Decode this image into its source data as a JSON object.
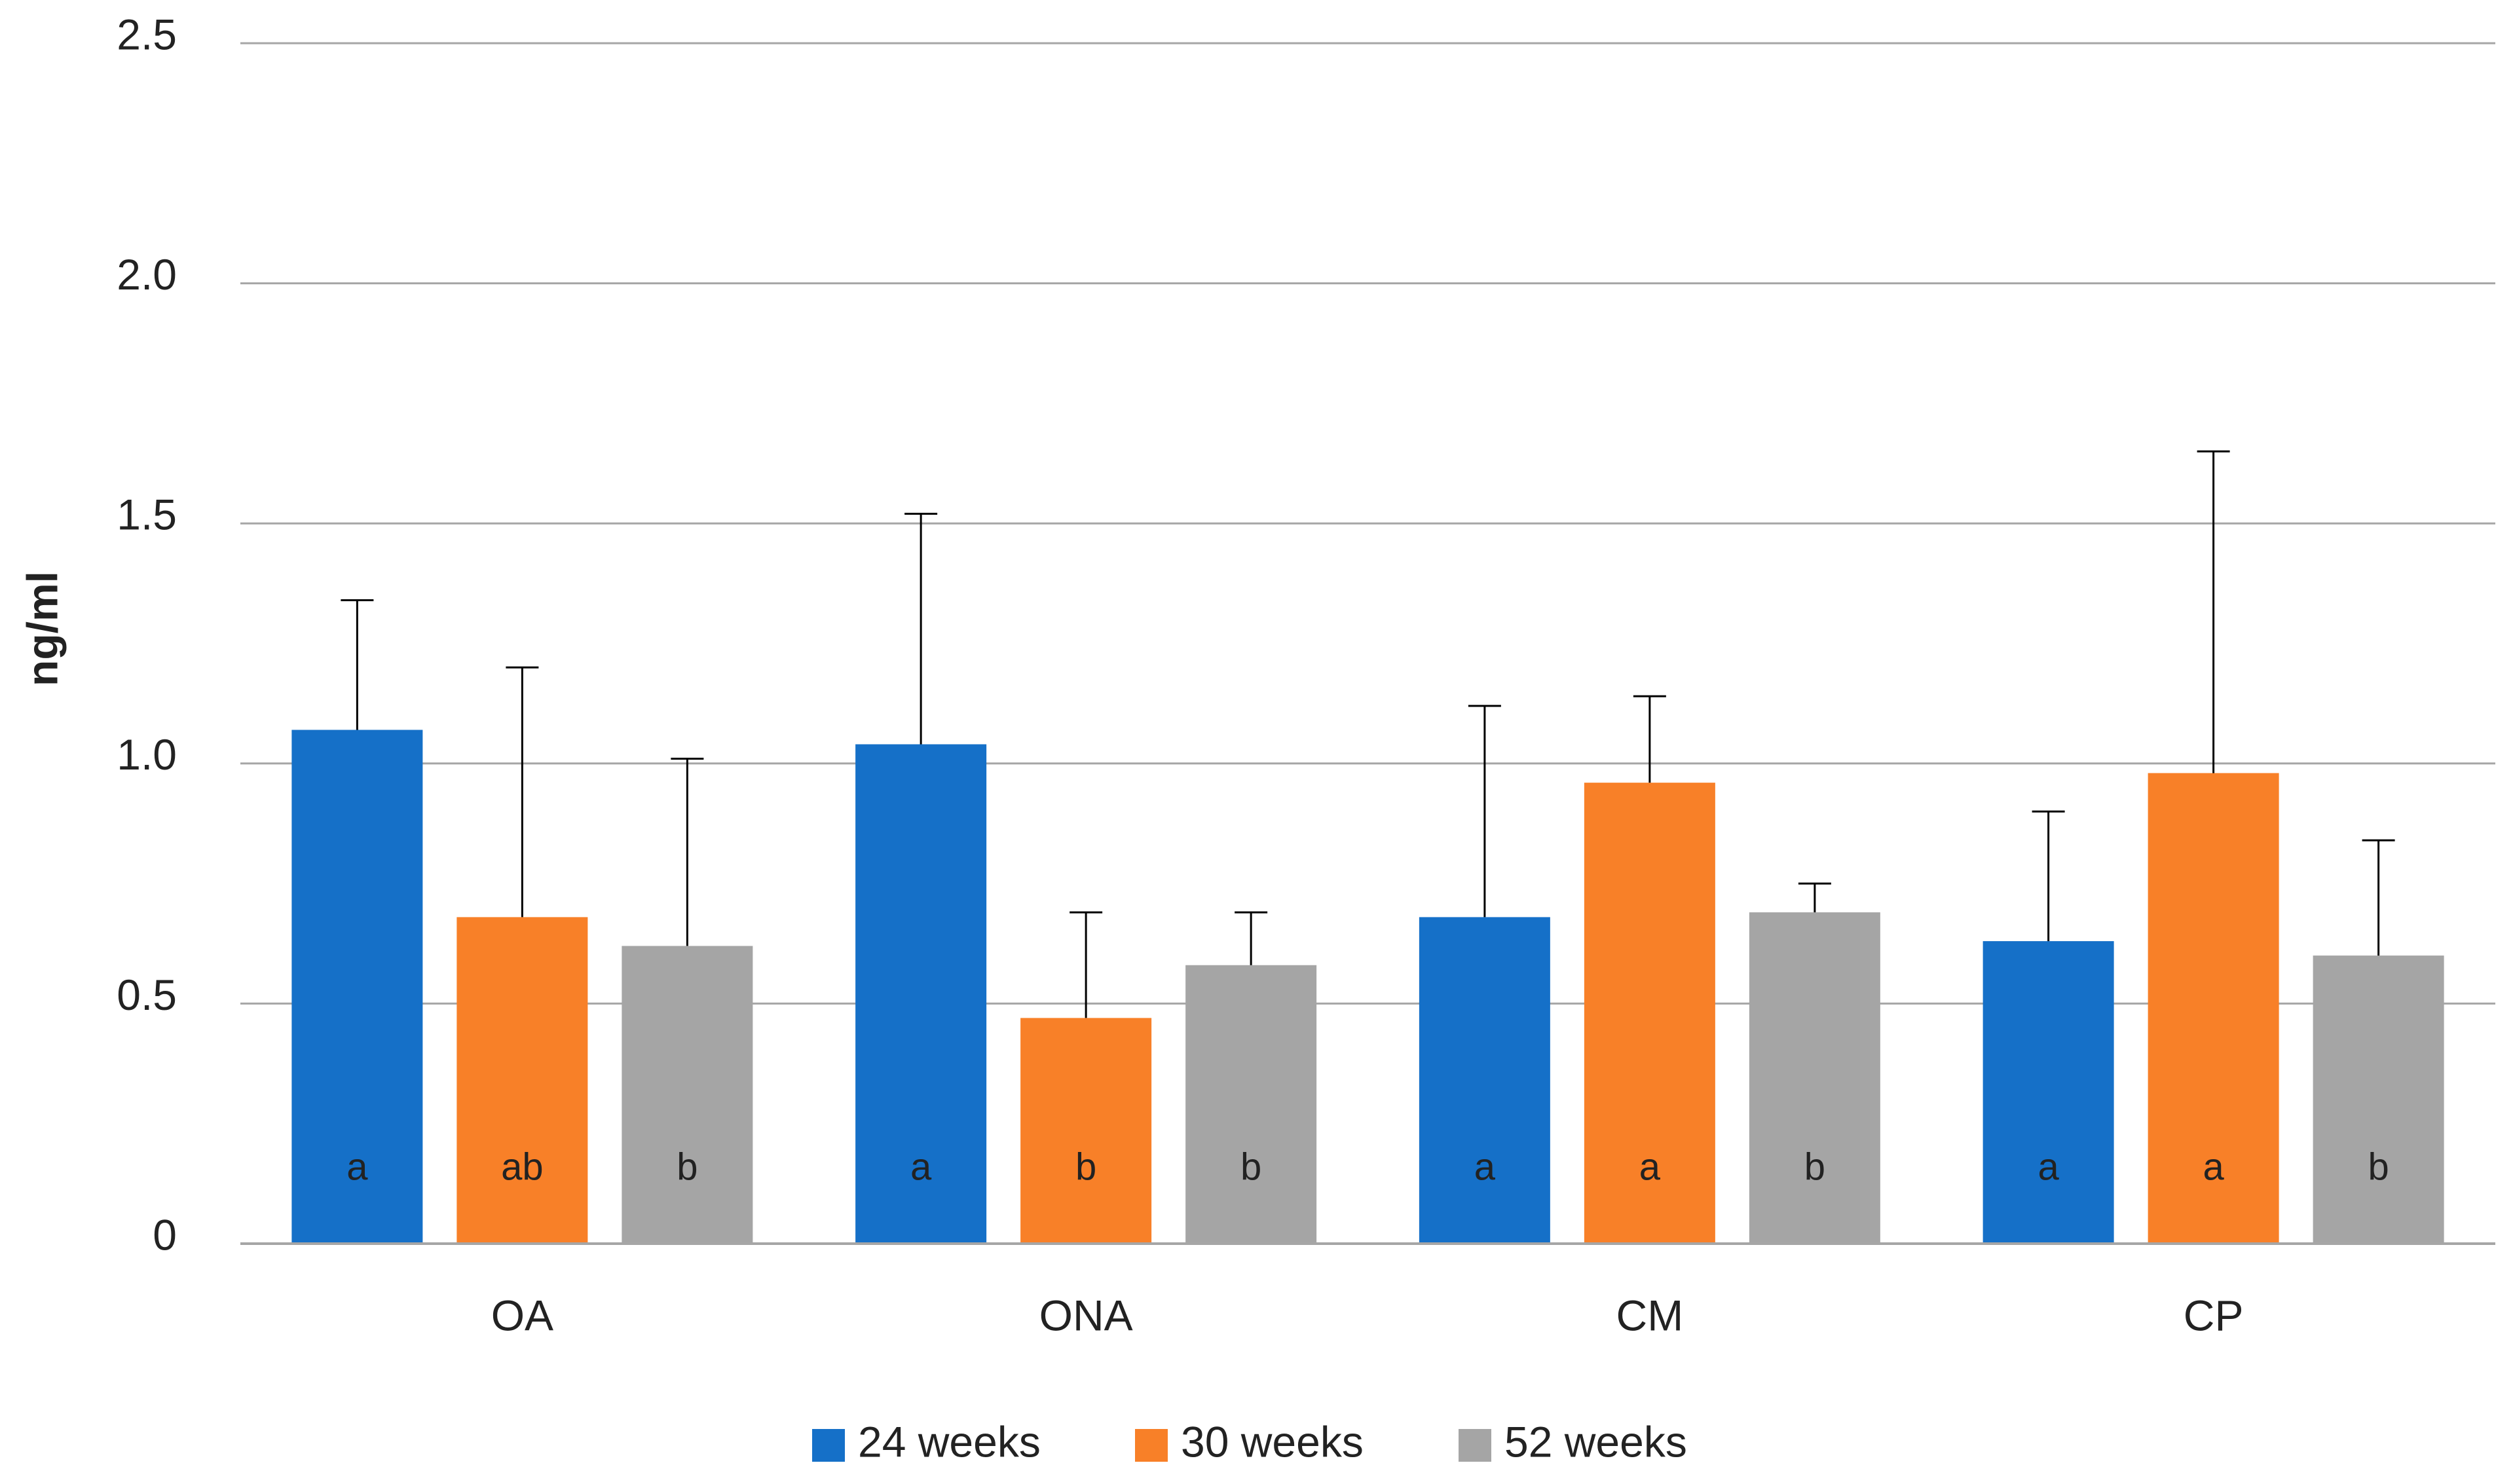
{
  "chart_data": {
    "type": "bar",
    "y_label": "ng/ml",
    "categories": [
      "OA",
      "ONA",
      "CM",
      "CP"
    ],
    "series": [
      {
        "name": "24 weeks",
        "color": "#1570c8",
        "values": [
          1.07,
          1.04,
          0.68,
          0.63
        ],
        "errors": [
          0.27,
          0.48,
          0.44,
          0.27
        ],
        "letters": [
          "a",
          "a",
          "a",
          "a"
        ]
      },
      {
        "name": "30 weeks",
        "color": "#f88028",
        "values": [
          0.68,
          0.47,
          0.96,
          0.98
        ],
        "errors": [
          0.52,
          0.22,
          0.18,
          0.67
        ],
        "letters": [
          "ab",
          "b",
          "a",
          "a"
        ]
      },
      {
        "name": "52 weeks",
        "color": "#a5a5a5",
        "values": [
          0.62,
          0.58,
          0.69,
          0.6
        ],
        "errors": [
          0.39,
          0.11,
          0.06,
          0.24
        ],
        "letters": [
          "b",
          "b",
          "b",
          "b"
        ]
      }
    ],
    "ylim": [
      0,
      2.5
    ],
    "yticks": [
      0,
      0.5,
      {
        "value": 1,
        "label": "1.0"
      },
      1.5,
      {
        "value": 2,
        "label": "2.0"
      },
      2.5
    ],
    "grid": true,
    "legend": "bottom"
  }
}
